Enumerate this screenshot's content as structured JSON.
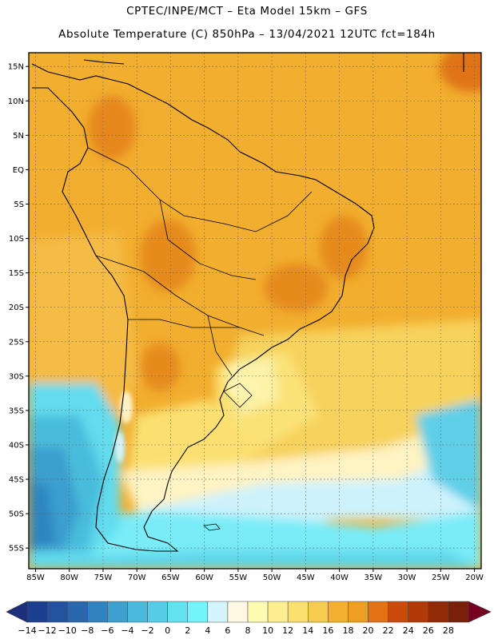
{
  "header": {
    "line1": "CPTEC/INPE/MCT –  Eta Model 15km – GFS",
    "line2": "Absolute Temperature (C) 850hPa – 13/04/2021 12UTC fct=184h"
  },
  "map": {
    "lon_range": [
      -86,
      -19
    ],
    "lat_range": [
      -58,
      17
    ],
    "lat_labels": [
      "15N",
      "10N",
      "5N",
      "EQ",
      "5S",
      "10S",
      "15S",
      "20S",
      "25S",
      "30S",
      "35S",
      "40S",
      "45S",
      "50S",
      "55S"
    ],
    "lat_values": [
      15,
      10,
      5,
      0,
      -5,
      -10,
      -15,
      -20,
      -25,
      -30,
      -35,
      -40,
      -45,
      -50,
      -55
    ],
    "lon_labels": [
      "85W",
      "80W",
      "75W",
      "70W",
      "65W",
      "60W",
      "55W",
      "50W",
      "45W",
      "40W",
      "35W",
      "30W",
      "25W",
      "20W"
    ],
    "lon_values": [
      -85,
      -80,
      -75,
      -70,
      -65,
      -60,
      -55,
      -50,
      -45,
      -40,
      -35,
      -30,
      -25,
      -20
    ],
    "gridlines": "dotted"
  },
  "colorbar": {
    "labels": [
      "-14",
      "-12",
      "-10",
      "-8",
      "-6",
      "-4",
      "-2",
      "0",
      "2",
      "4",
      "6",
      "8",
      "10",
      "12",
      "14",
      "16",
      "18",
      "20",
      "22",
      "24",
      "26",
      "28"
    ],
    "colors": [
      "#1d3f8f",
      "#24529e",
      "#2a68ad",
      "#3183bf",
      "#3ea0cf",
      "#49b9dc",
      "#56cde6",
      "#62e1ef",
      "#72f4fb",
      "#d4f5fd",
      "#fff8e2",
      "#fefcb2",
      "#fdee92",
      "#fbe070",
      "#f6cb4e",
      "#f4b12e",
      "#eda020",
      "#e27214",
      "#cc4b0c",
      "#b33908",
      "#922a08",
      "#7a1f0a"
    ],
    "under_color": "#1c2f7a",
    "over_color": "#770020"
  }
}
